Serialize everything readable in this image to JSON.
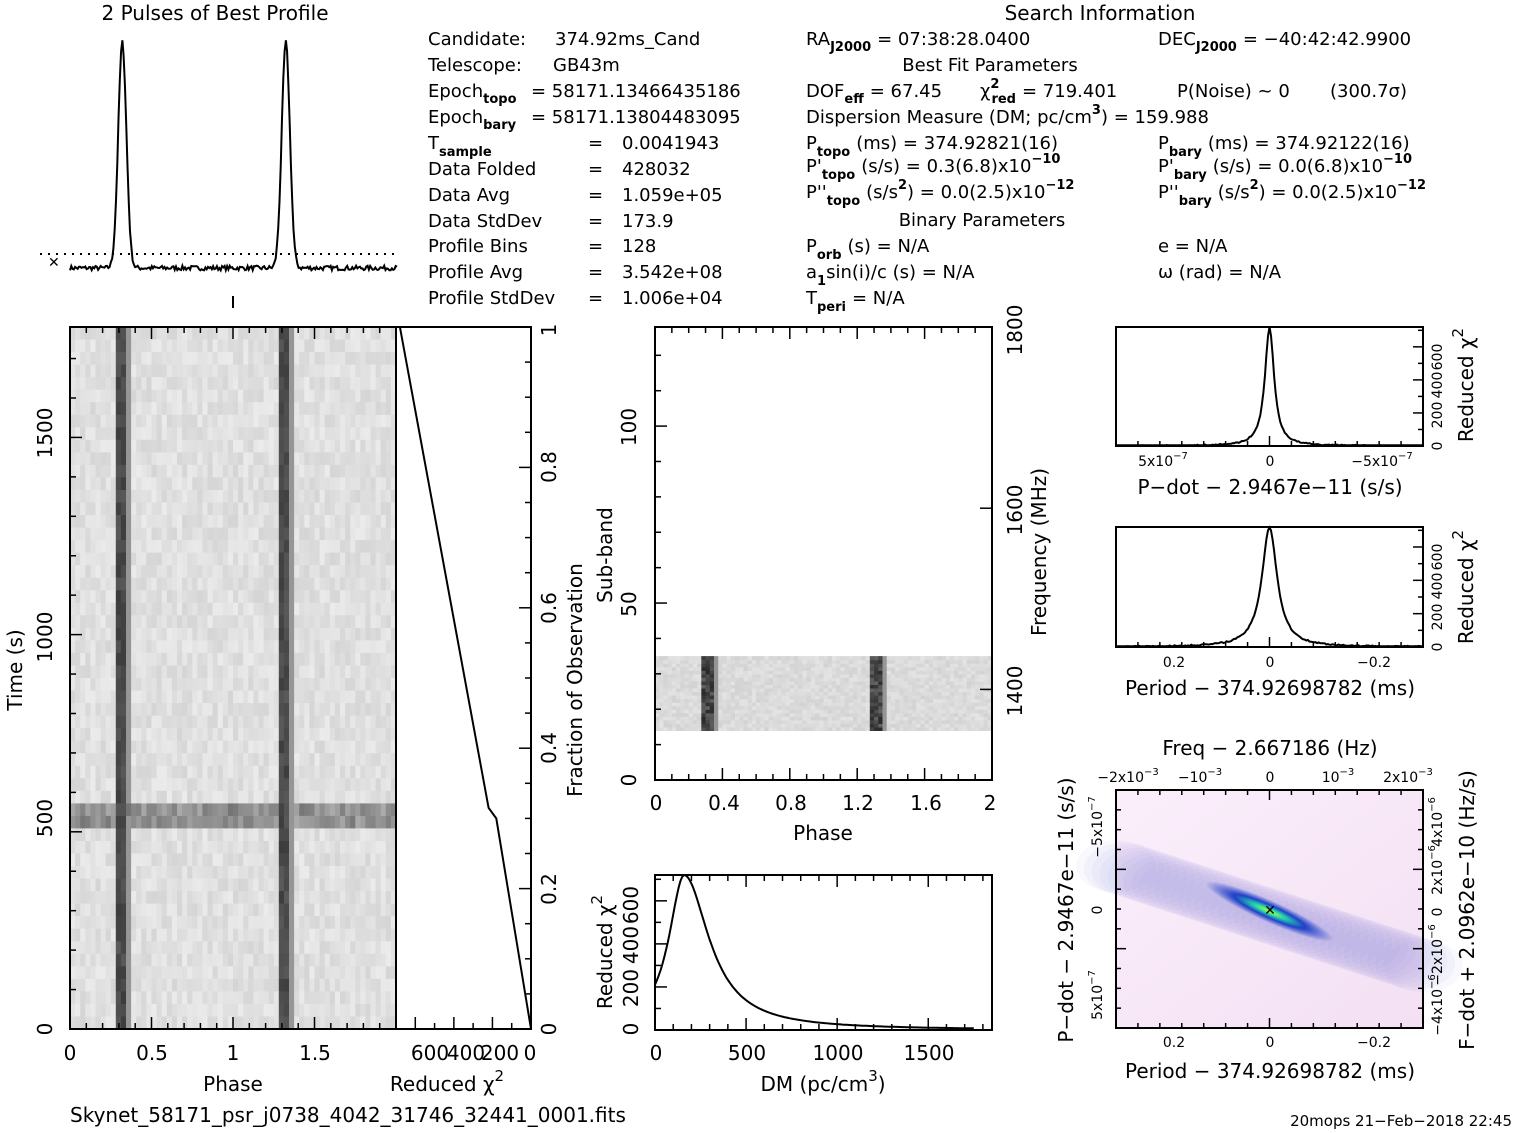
{
  "colors": {
    "ink": "#000000",
    "bg": "#ffffff",
    "gray_band": "#d8d8d8",
    "pd_low": "#f7eaf7",
    "pd_mid": "#3030c8",
    "pd_high": "#20c0a0",
    "pd_peak": "#a0e020"
  },
  "titles": {
    "profile": "2 Pulses of Best Profile",
    "search": "Search Information",
    "best_fit": "Best Fit Parameters",
    "binary": "Binary Parameters"
  },
  "info_left": [
    {
      "label": "Candidate:",
      "value": "374.92ms_Cand"
    },
    {
      "label": "Telescope:",
      "value": "GB43m"
    },
    {
      "label": "Epoch",
      "sub": "topo",
      "value": "= 58171.13466435186"
    },
    {
      "label": "Epoch",
      "sub": "bary",
      "value": "= 58171.13804483095"
    },
    {
      "label": "T",
      "sub": "sample",
      "value": "0.0041943"
    },
    {
      "label": "Data Folded",
      "value": "428032"
    },
    {
      "label": "Data Avg",
      "value": "1.059e+05"
    },
    {
      "label": "Data StdDev",
      "value": "173.9"
    },
    {
      "label": "Profile Bins",
      "value": "128"
    },
    {
      "label": "Profile Avg",
      "value": "3.542e+08"
    },
    {
      "label": "Profile StdDev",
      "value": "1.006e+04"
    }
  ],
  "info_mid": {
    "ra": "RA",
    "ra_sub": "J2000",
    "ra_value": "= 07:38:28.0400",
    "dof": "DOF",
    "dof_sub": "eff",
    "dof_value": "= 67.45",
    "chi": "χ",
    "chi_sup": "2",
    "chi_sub": "red",
    "chi_value": "= 719.401",
    "pnoise": "P(Noise) ~ 0",
    "sigma": "(300.7σ)",
    "dm_line": "Dispersion Measure (DM; pc/cm",
    "dm_sup": "3",
    "dm_value": ") = 159.988",
    "ptopo": "P",
    "ptopo_sub": "topo",
    "ptopo_value": "(ms) =  374.92821(16)",
    "pdtopo": "P'",
    "pdtopo_sub": "topo",
    "pdtopo_value": "(s/s) =  0.3(6.8)x10",
    "pdtopo_exp": "−10",
    "pddtopo": "P''",
    "pddtopo_sub": "topo",
    "pddtopo_value": "(s/s",
    "pddtopo_sup": "2",
    "pddtopo_value2": ") = 0.0(2.5)x10",
    "pddtopo_exp": "−12",
    "porb": "P",
    "porb_sub": "orb",
    "porb_value": "(s) = N/A",
    "a1": "a",
    "a1_sub": "1",
    "a1_value": "sin(i)/c (s) = N/A",
    "tperi": "T",
    "tperi_sub": "peri",
    "tperi_value": "= N/A"
  },
  "info_right": {
    "dec": "DEC",
    "dec_sub": "J2000",
    "dec_value": "= −40:42:42.9900",
    "pbary": "P",
    "pbary_sub": "bary",
    "pbary_value": "(ms) =  374.92122(16)",
    "pdbary": "P'",
    "pdbary_sub": "bary",
    "pdbary_value": "(s/s) = 0.0(6.8)x10",
    "pdbary_exp": "−10",
    "pddbary": "P''",
    "pddbary_sub": "bary",
    "pddbary_value": "(s/s",
    "pddbary_sup": "2",
    "pddbary_value2": ") = 0.0(2.5)x10",
    "pddbary_exp": "−12",
    "e": "e = N/A",
    "omega": "ω (rad) = N/A"
  },
  "axes": {
    "time_label": "Time (s)",
    "phase_label": "Phase",
    "redchi_label": "Reduced χ",
    "redchi_sup": "2",
    "fraction_label": "Fraction of Observation",
    "subband_label": "Sub-band",
    "freq_label": "Frequency (MHz)",
    "dm_label": "DM (pc/cm",
    "dm_sup": "3",
    "dm_label2": ")",
    "pdot_xlabel": "P−dot − 2.9467e−11 (s/s)",
    "period_xlabel": "Period − 374.92698782 (ms)",
    "freq_top_label": "Freq − 2.667186 (Hz)",
    "pdot_ylabel": "P−dot − 2.9467e−11 (s/s)",
    "fdot_ylabel": "F−dot + 2.0962e−10 (Hz/s)",
    "period_xlabel2": "Period − 374.92698782 (ms)"
  },
  "ticks": {
    "time_y": [
      "0",
      "500",
      "1000",
      "1500"
    ],
    "phase_x": [
      "0",
      "0.5",
      "1",
      "1.5"
    ],
    "redchi_x": [
      "600",
      "400",
      "200",
      "0"
    ],
    "fraction_y": [
      "0",
      "0.2",
      "0.4",
      "0.6",
      "0.8",
      "1"
    ],
    "subband_y": [
      "0",
      "50",
      "100"
    ],
    "phase2_x": [
      "0",
      "0.4",
      "0.8",
      "1.2",
      "1.6",
      "2"
    ],
    "freq_y": [
      "1400",
      "1600",
      "1800"
    ],
    "dm_x": [
      "0",
      "500",
      "1000",
      "1500"
    ],
    "dm_y": [
      "0",
      "200",
      "400",
      "600"
    ],
    "pd_x": [
      "5x10",
      "0",
      "−5x10"
    ],
    "pd_x_exp": "−7",
    "rc_y": [
      "0",
      "200",
      "400",
      "600"
    ],
    "per_x": [
      "0.2",
      "0",
      "−0.2"
    ],
    "freq_top": [
      "−2x10",
      "−10",
      "0",
      "10",
      "2x10"
    ],
    "freq_top_exp": "−3",
    "pdot_y": [
      "−5x10",
      "0",
      "5x10"
    ],
    "pdot_y_exp": "−7",
    "fdot_y": [
      "4x10",
      "2x10",
      "0",
      "−2x10",
      "−4x10"
    ],
    "fdot_y_exp": "−6"
  },
  "footer": {
    "filename": "Skynet_58171_psr_j0738_4042_31746_32441_0001.fits",
    "stamp": "20mops 21−Feb−2018 22:45"
  },
  "chart_data": [
    {
      "type": "line",
      "title": "2 Pulses of Best Profile",
      "xlabel": "",
      "ylabel": "",
      "x_range": [
        0,
        2
      ],
      "peaks_phase": [
        0.32,
        1.32
      ],
      "peak_width_phase": 0.025,
      "baseline": 0.03,
      "peak": 1.0,
      "avg_line": 0.09
    },
    {
      "type": "heatmap",
      "xlabel": "Phase",
      "ylabel": "Time (s)",
      "x_range": [
        0,
        2
      ],
      "y_range": [
        0,
        1780
      ],
      "pulse_phases": [
        0.32,
        1.32
      ],
      "bright_row_time": 540
    },
    {
      "type": "line",
      "xlabel": "Reduced χ2",
      "ylabel": "Fraction of Observation",
      "x_range": [
        0,
        700
      ],
      "x_reversed": true,
      "y_range": [
        0,
        1
      ],
      "points": [
        [
          0,
          0.0
        ],
        [
          180,
          0.3
        ],
        [
          220,
          0.315
        ],
        [
          680,
          1.0
        ]
      ]
    },
    {
      "type": "heatmap",
      "xlabel": "Phase",
      "ylabel": "Sub-band",
      "x_range": [
        0,
        2
      ],
      "y_range": [
        0,
        128
      ],
      "band_range": [
        14,
        35
      ],
      "pulse_phases": [
        0.32,
        1.32
      ],
      "freq_ticks": [
        1400,
        1600,
        1800
      ]
    },
    {
      "type": "line",
      "xlabel": "DM (pc/cm3)",
      "ylabel": "Reduced χ2",
      "x_range": [
        0,
        1850
      ],
      "y_range": [
        0,
        720
      ],
      "peak_dm": 159.988,
      "peak_value": 719.4
    },
    {
      "type": "line",
      "xlabel": "P−dot − 2.9467e−11 (s/s)",
      "ylabel": "Reduced χ2",
      "x_range": [
        7e-07,
        -7e-07
      ],
      "y_range": [
        0,
        720
      ],
      "peak_x": 0,
      "peak_value": 719.4
    },
    {
      "type": "line",
      "xlabel": "Period − 374.92698782 (ms)",
      "ylabel": "Reduced χ2",
      "x_range": [
        0.32,
        -0.32
      ],
      "y_range": [
        0,
        720
      ],
      "peak_x": 0,
      "peak_value": 719.4
    },
    {
      "type": "heatmap",
      "xlabel": "Period − 374.92698782 (ms)",
      "ylabel": "P−dot − 2.9467e−11 (s/s)",
      "x_range": [
        0.32,
        -0.32
      ],
      "y_range": [
        8e-07,
        -8e-07
      ],
      "top_axis": "Freq − 2.667186 (Hz)",
      "right_axis": "F−dot + 2.0962e−10 (Hz/s)"
    }
  ]
}
